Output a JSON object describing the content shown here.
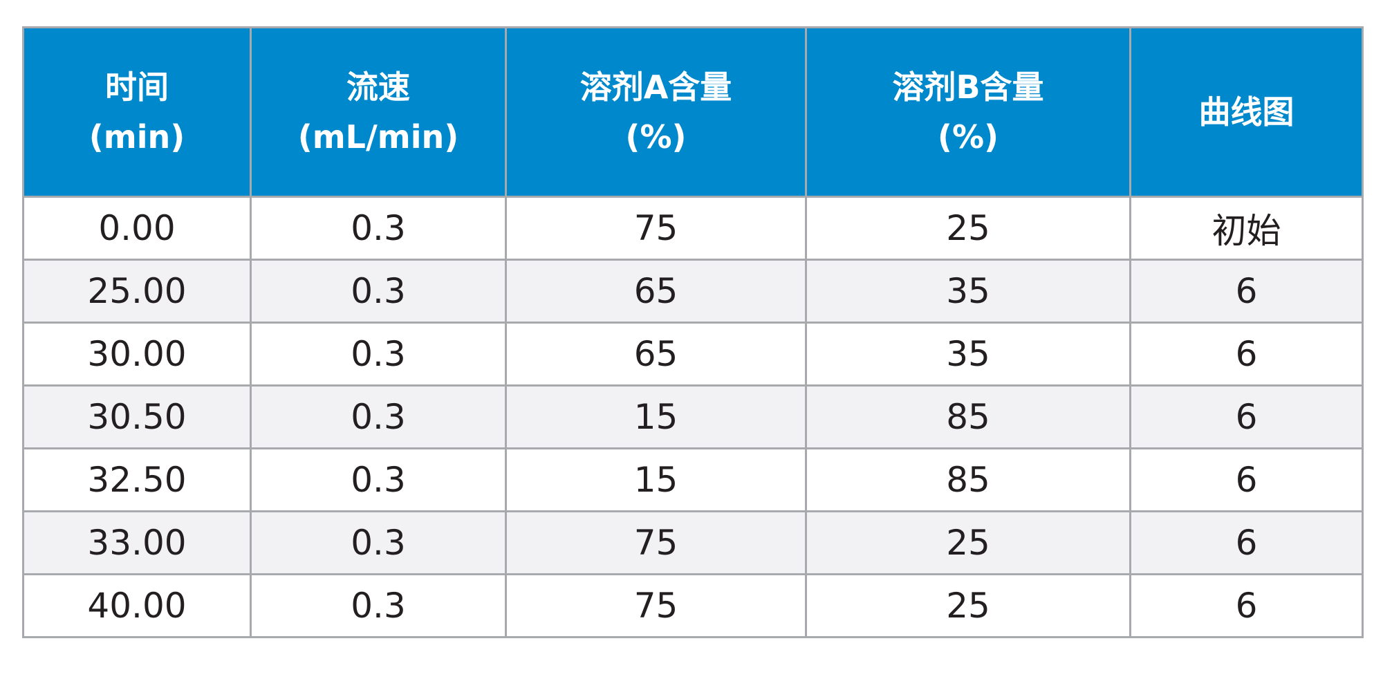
{
  "table": {
    "header_bg_color": "#0088cc",
    "header_text_color": "#ffffff",
    "stripe_color": "#f2f2f4",
    "border_color": "#a7a9ac",
    "columns": [
      {
        "line1": "时间",
        "line2": "(min)"
      },
      {
        "line1": "流速",
        "line2": "(mL/min)"
      },
      {
        "line1": "溶剂A含量",
        "line2": "(%)"
      },
      {
        "line1": "溶剂B含量",
        "line2": "(%)"
      },
      {
        "line1": "曲线图",
        "line2": ""
      }
    ],
    "rows": [
      [
        "0.00",
        "0.3",
        "75",
        "25",
        "初始"
      ],
      [
        "25.00",
        "0.3",
        "65",
        "35",
        "6"
      ],
      [
        "30.00",
        "0.3",
        "65",
        "35",
        "6"
      ],
      [
        "30.50",
        "0.3",
        "15",
        "85",
        "6"
      ],
      [
        "32.50",
        "0.3",
        "15",
        "85",
        "6"
      ],
      [
        "33.00",
        "0.3",
        "75",
        "25",
        "6"
      ],
      [
        "40.00",
        "0.3",
        "75",
        "25",
        "6"
      ]
    ]
  }
}
